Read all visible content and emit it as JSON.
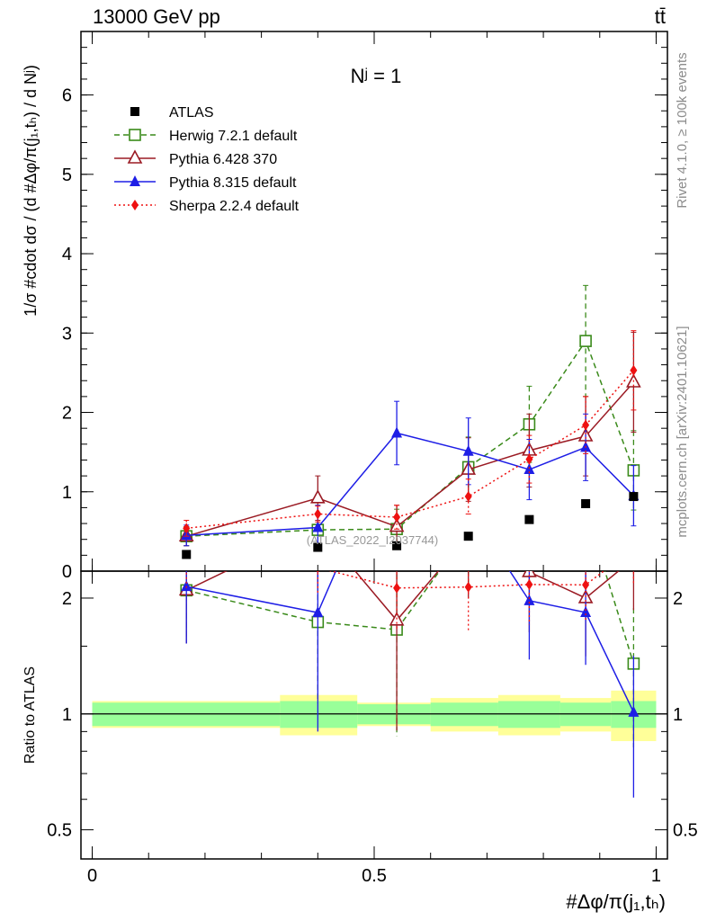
{
  "header": {
    "left": "13000 GeV pp",
    "right": "tt̄"
  },
  "side_texts": {
    "rivet": "Rivet 4.1.0, ≥ 100k events",
    "mcplots": "mcplots.cern.ch [arXiv:2401.10621]"
  },
  "chart_data": {
    "type": "scatter",
    "title": "Nʲ = 1",
    "watermark": "(ATLAS_2022_I2037744)",
    "xlabel": "#Δφ/π(j₁,tₕ)",
    "ylabel": "1/σ #cdot dσ / (d #Δφ/π(j₁,tₕ) / d Nʲ)",
    "ratio_ylabel": "Ratio to ATLAS",
    "xlim": [
      -0.02,
      1.02
    ],
    "ylim_main": [
      0,
      6.8
    ],
    "ylim_ratio": [
      0.42,
      2.35
    ],
    "x_ticks": [
      {
        "v": 0,
        "label": "0"
      },
      {
        "v": 0.5,
        "label": "0.5"
      },
      {
        "v": 1,
        "label": "1"
      }
    ],
    "y_ticks_main": [
      {
        "v": 0,
        "label": "0"
      },
      {
        "v": 1,
        "label": "1"
      },
      {
        "v": 2,
        "label": "2"
      },
      {
        "v": 3,
        "label": "3"
      },
      {
        "v": 4,
        "label": "4"
      },
      {
        "v": 5,
        "label": "5"
      },
      {
        "v": 6,
        "label": "6"
      }
    ],
    "y_ticks_ratio": [
      {
        "v": 0.5,
        "label": "0.5"
      },
      {
        "v": 1,
        "label": "1"
      },
      {
        "v": 2,
        "label": "2"
      }
    ],
    "x": [
      0.167,
      0.4,
      0.54,
      0.667,
      0.775,
      0.875,
      0.96
    ],
    "data_series": {
      "name": "ATLAS",
      "values": [
        0.21,
        0.3,
        0.32,
        0.44,
        0.65,
        0.85,
        0.94
      ],
      "bin_edges": [
        0,
        0.333,
        0.47,
        0.6,
        0.72,
        0.83,
        0.92,
        1.0
      ],
      "band_inner": [
        0.07,
        0.08,
        0.06,
        0.07,
        0.08,
        0.07,
        0.08
      ],
      "band_outer": [
        0.08,
        0.12,
        0.07,
        0.1,
        0.12,
        0.1,
        0.15
      ]
    },
    "series": [
      {
        "name": "Herwig 7.2.1 default",
        "color": "#3a8a1a",
        "marker": "open-square",
        "dash": "6,4",
        "values": [
          0.44,
          0.52,
          0.53,
          1.31,
          1.85,
          2.9,
          1.27
        ],
        "errors": [
          0.12,
          0.2,
          0.25,
          0.38,
          0.48,
          0.7,
          0.5
        ]
      },
      {
        "name": "Pythia 6.428 370",
        "color": "#9b1b24",
        "marker": "open-triangle",
        "dash": "",
        "values": [
          0.44,
          0.92,
          0.56,
          1.28,
          1.52,
          1.7,
          2.38
        ],
        "errors": [
          0.12,
          0.28,
          0.27,
          0.4,
          0.46,
          0.5,
          0.63
        ]
      },
      {
        "name": "Pythia 8.315 default",
        "color": "#1e1ee6",
        "marker": "filled-triangle",
        "dash": "",
        "values": [
          0.45,
          0.55,
          1.74,
          1.51,
          1.28,
          1.56,
          0.95
        ],
        "errors": [
          0.13,
          0.28,
          0.4,
          0.42,
          0.38,
          0.42,
          0.38
        ]
      },
      {
        "name": "Sherpa 2.2.4 default",
        "color": "#ee1111",
        "marker": "filled-diamond",
        "dash": "2,3",
        "values": [
          0.54,
          0.72,
          0.68,
          0.94,
          1.41,
          1.84,
          2.53
        ],
        "errors": [
          0.1,
          0.1,
          0.15,
          0.22,
          0.3,
          0.36,
          0.5
        ]
      }
    ]
  }
}
